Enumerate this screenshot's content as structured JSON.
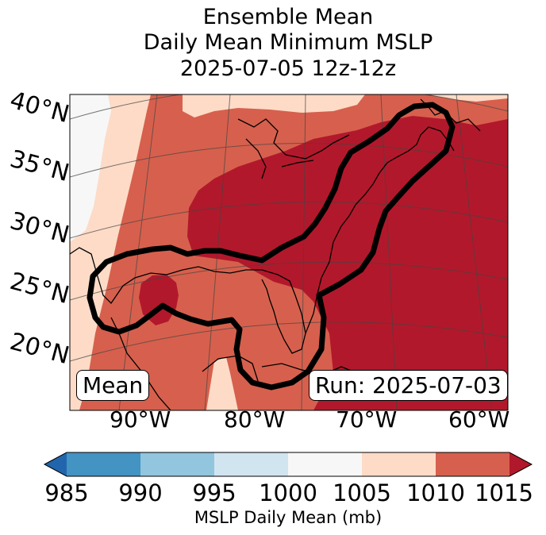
{
  "title": {
    "line1": "Ensemble Mean",
    "line2": "Daily Mean Minimum MSLP",
    "line3": "2025-07-05 12z-12z"
  },
  "map": {
    "lat_labels": [
      "40°N",
      "35°N",
      "30°N",
      "25°N",
      "20°N"
    ],
    "lon_labels": [
      "90°W",
      "80°W",
      "70°W",
      "60°W"
    ],
    "mean_label": "Mean",
    "run_label": "Run: 2025-07-03",
    "contour_color": "#000000",
    "region": "Eastern United States, Gulf of Mexico and western Atlantic"
  },
  "colorbar": {
    "ticks": [
      "985",
      "990",
      "995",
      "1000",
      "1005",
      "1010",
      "1015"
    ],
    "colors": [
      "#2166ac",
      "#4393c3",
      "#92c5de",
      "#d1e5f0",
      "#f7f7f7",
      "#fddbc7",
      "#d6604d",
      "#b2182b"
    ],
    "label": "MSLP Daily Mean (mb)"
  }
}
